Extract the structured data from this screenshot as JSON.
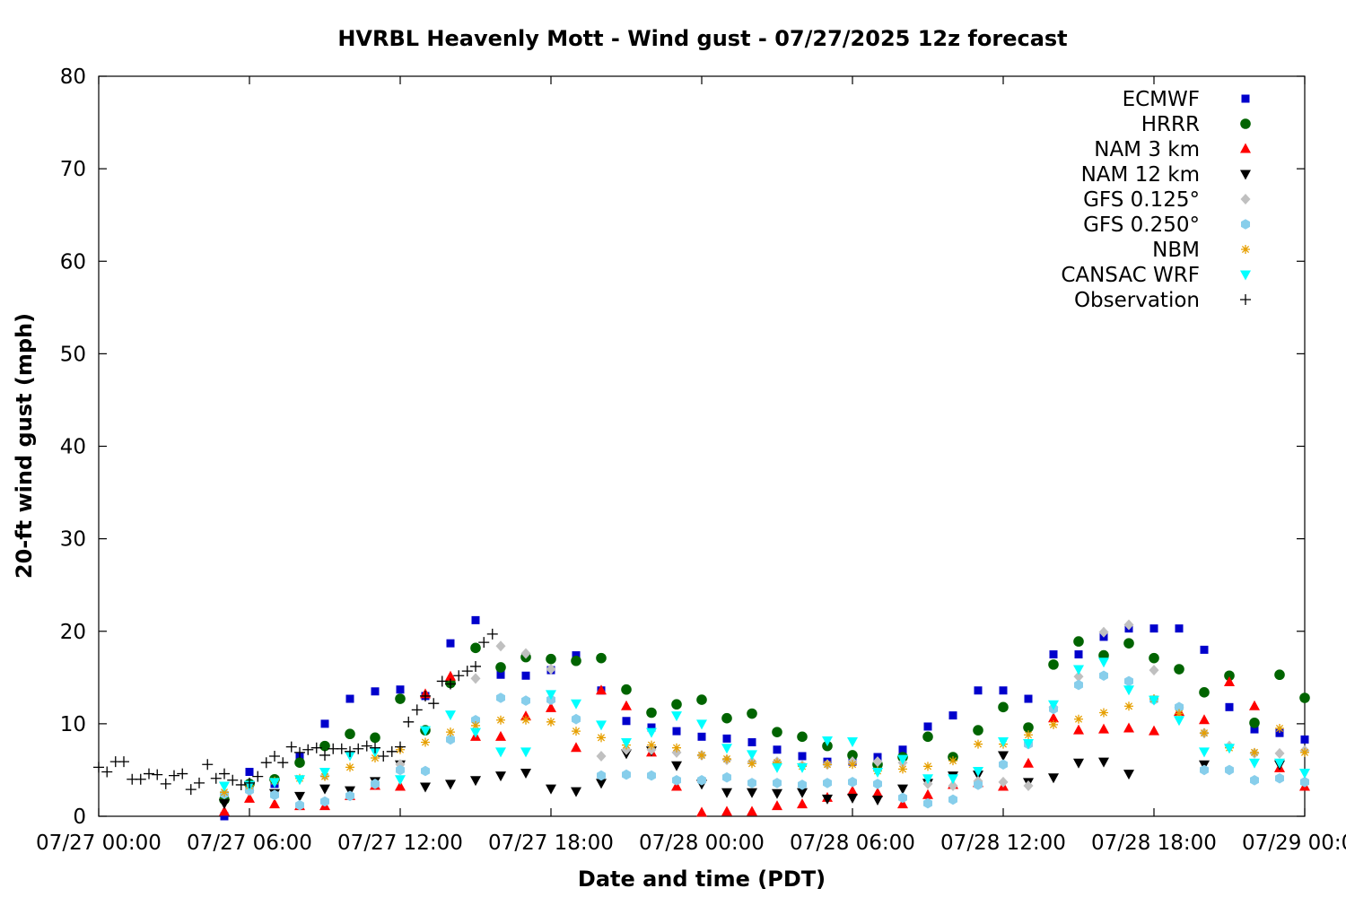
{
  "chart_data": {
    "type": "scatter",
    "title": "HVRBL Heavenly Mott - Wind gust - 07/27/2025 12z forecast",
    "xlabel": "Date and time (PDT)",
    "ylabel": "20-ft wind gust (mph)",
    "xlim": [
      0,
      48
    ],
    "ylim": [
      0,
      80
    ],
    "x_units": "hours since 07/27 00:00 PDT",
    "x_ticks": [
      {
        "x": 0,
        "label": "07/27 00:00"
      },
      {
        "x": 6,
        "label": "07/27 06:00"
      },
      {
        "x": 12,
        "label": "07/27 12:00"
      },
      {
        "x": 18,
        "label": "07/27 18:00"
      },
      {
        "x": 24,
        "label": "07/28 00:00"
      },
      {
        "x": 30,
        "label": "07/28 06:00"
      },
      {
        "x": 36,
        "label": "07/28 12:00"
      },
      {
        "x": 42,
        "label": "07/28 18:00"
      },
      {
        "x": 48,
        "label": "07/29 00:00"
      }
    ],
    "y_ticks": [
      0,
      10,
      20,
      30,
      40,
      50,
      60,
      70,
      80
    ],
    "grid": false,
    "legend_position": "top-right",
    "series": [
      {
        "name": "ECMWF",
        "marker": "square",
        "color": "#0000cc",
        "x": [
          5,
          6,
          7,
          8,
          9,
          10,
          11,
          12,
          13,
          14,
          15,
          16,
          17,
          18,
          19,
          20,
          21,
          22,
          23,
          24,
          25,
          26,
          27,
          28,
          29,
          30,
          31,
          32,
          33,
          34,
          35,
          36,
          37,
          38,
          39,
          40,
          41,
          42,
          43,
          44,
          45,
          46,
          47,
          48
        ],
        "y": [
          0,
          4.8,
          3.5,
          6.5,
          10,
          12.7,
          13.5,
          13.7,
          13,
          18.7,
          21.2,
          15.3,
          15.2,
          15.8,
          17.4,
          13.6,
          10.3,
          9.6,
          9.2,
          8.6,
          8.4,
          8.0,
          7.2,
          6.5,
          5.9,
          5.9,
          6.4,
          7.2,
          9.7,
          10.9,
          13.6,
          13.6,
          12.7,
          17.5,
          17.5,
          19.4,
          20.3,
          20.3,
          20.3,
          18,
          11.8,
          9.4,
          9.0,
          8.3
        ]
      },
      {
        "name": "HRRR",
        "marker": "circle",
        "color": "#006400",
        "x": [
          5,
          6,
          7,
          8,
          9,
          10,
          11,
          12,
          13,
          14,
          15,
          16,
          17,
          18,
          19,
          20,
          21,
          22,
          23,
          24,
          25,
          26,
          27,
          28,
          29,
          30,
          31,
          32,
          33,
          34,
          35,
          36,
          37,
          38,
          39,
          40,
          41,
          42,
          43,
          44,
          45,
          46,
          47,
          48
        ],
        "y": [
          1.8,
          3.5,
          4,
          5.8,
          7.6,
          8.9,
          8.5,
          12.7,
          9.3,
          14.4,
          18.2,
          16.1,
          17.2,
          17.0,
          16.8,
          17.1,
          13.7,
          11.2,
          12.1,
          12.6,
          10.6,
          11.1,
          9.1,
          8.6,
          7.6,
          6.6,
          5.6,
          6.4,
          8.6,
          6.4,
          9.3,
          11.8,
          9.6,
          16.4,
          18.9,
          17.4,
          18.7,
          17.1,
          15.9,
          13.4,
          15.2,
          10.1,
          15.3,
          12.8
        ]
      },
      {
        "name": "NAM 3 km",
        "marker": "triangle-up",
        "color": "#ff0000",
        "x": [
          5,
          6,
          7,
          8,
          9,
          10,
          11,
          12,
          13,
          14,
          15,
          16,
          17,
          18,
          19,
          20,
          21,
          22,
          23,
          24,
          25,
          26,
          27,
          28,
          29,
          30,
          31,
          32,
          33,
          34,
          35,
          36,
          37,
          38,
          39,
          40,
          41,
          42,
          43,
          44,
          45,
          46,
          47,
          48
        ],
        "y": [
          0.5,
          1.9,
          1.3,
          1.1,
          1.1,
          2.2,
          3.3,
          3.2,
          13.2,
          15.1,
          8.6,
          8.6,
          10.8,
          11.7,
          7.4,
          13.6,
          11.9,
          6.9,
          3.2,
          0.4,
          0.5,
          0.5,
          1.1,
          1.3,
          2.0,
          2.7,
          2.5,
          1.3,
          2.3,
          3.4,
          3.6,
          3.2,
          5.7,
          10.6,
          9.3,
          9.4,
          9.5,
          9.2,
          11.3,
          10.4,
          14.5,
          11.9,
          5.2,
          3.2
        ]
      },
      {
        "name": "NAM 12 km",
        "marker": "triangle-down",
        "color": "#000000",
        "x": [
          5,
          6,
          7,
          8,
          9,
          10,
          11,
          12,
          13,
          14,
          15,
          16,
          17,
          18,
          19,
          20,
          21,
          22,
          23,
          24,
          25,
          26,
          27,
          28,
          29,
          30,
          31,
          32,
          33,
          34,
          35,
          36,
          37,
          38,
          39,
          40,
          41,
          42,
          43,
          44,
          45,
          46,
          47,
          48
        ],
        "y": [
          1.4,
          3.3,
          2.5,
          2.2,
          3.0,
          2.8,
          3.8,
          5.6,
          3.2,
          3.5,
          3.9,
          4.4,
          4.7,
          3.0,
          2.7,
          3.6,
          6.8,
          7.1,
          5.5,
          3.5,
          2.6,
          2.6,
          2.5,
          2.6,
          1.9,
          2.0,
          1.8,
          3.0,
          3.6,
          4.4,
          4.5,
          6.6,
          3.7,
          4.2,
          5.8,
          5.9,
          4.6,
          null,
          null,
          5.6,
          null,
          null,
          5.6,
          null
        ]
      },
      {
        "name": "GFS 0.125°",
        "marker": "diamond",
        "color": "#c0c0c0",
        "x": [
          6,
          9,
          12,
          15,
          16,
          17,
          18,
          19,
          20,
          21,
          22,
          23,
          24,
          25,
          26,
          27,
          28,
          29,
          30,
          31,
          32,
          33,
          34,
          35,
          36,
          37,
          38,
          39,
          40,
          41,
          42,
          43,
          44,
          45,
          46,
          47,
          48
        ],
        "y": [
          2.8,
          4.4,
          5.6,
          14.9,
          18.4,
          17.6,
          15.9,
          10.5,
          6.5,
          7.2,
          7.2,
          6.9,
          6.6,
          6.1,
          5.9,
          5.9,
          5.5,
          5.6,
          5.9,
          5.9,
          5.8,
          3.5,
          3.3,
          3.8,
          3.7,
          3.3,
          11.8,
          15.1,
          19.9,
          20.7,
          15.8,
          11.8,
          9.0,
          7.6,
          6.8,
          6.8,
          7.1
        ]
      },
      {
        "name": "GFS 0.250°",
        "marker": "hexagon",
        "color": "#87ceeb",
        "x": [
          5,
          6,
          7,
          8,
          9,
          10,
          11,
          12,
          13,
          14,
          15,
          16,
          17,
          18,
          19,
          20,
          21,
          22,
          23,
          24,
          25,
          26,
          27,
          28,
          29,
          30,
          31,
          32,
          33,
          34,
          35,
          36,
          37,
          38,
          39,
          40,
          41,
          42,
          43,
          44,
          45,
          46,
          47,
          48
        ],
        "y": [
          2.4,
          2.8,
          2.3,
          1.2,
          1.6,
          2.2,
          3.5,
          5.0,
          4.9,
          8.3,
          10.4,
          12.8,
          12.5,
          12.6,
          10.5,
          4.4,
          4.5,
          4.4,
          3.9,
          3.9,
          4.2,
          3.6,
          3.6,
          3.4,
          3.6,
          3.7,
          3.5,
          2.0,
          1.4,
          1.8,
          3.4,
          5.6,
          7.8,
          11.6,
          14.2,
          15.2,
          14.6,
          12.6,
          11.8,
          5.0,
          5.0,
          3.9,
          4.1,
          3.7
        ]
      },
      {
        "name": "NBM",
        "marker": "asterisk",
        "color": "#e69f00",
        "x": [
          5,
          6,
          7,
          8,
          9,
          10,
          11,
          12,
          13,
          14,
          15,
          16,
          17,
          18,
          19,
          20,
          21,
          22,
          23,
          24,
          25,
          26,
          27,
          28,
          29,
          30,
          31,
          32,
          33,
          34,
          35,
          36,
          37,
          38,
          39,
          40,
          41,
          42,
          43,
          44,
          45,
          46,
          47,
          48
        ],
        "y": [
          2.6,
          3.3,
          3.8,
          4.1,
          4.3,
          5.3,
          6.3,
          7.2,
          8.0,
          9.1,
          9.8,
          10.4,
          10.4,
          10.2,
          9.2,
          8.5,
          7.7,
          7.7,
          7.4,
          6.6,
          6.2,
          5.7,
          5.8,
          5.4,
          5.6,
          5.6,
          4.9,
          5.1,
          5.4,
          6.0,
          7.8,
          7.8,
          8.8,
          9.9,
          10.5,
          11.2,
          11.9,
          12.7,
          11.1,
          9.0,
          7.4,
          6.9,
          9.5,
          6.9
        ]
      },
      {
        "name": "CANSAC WRF",
        "marker": "triangle-down",
        "color": "#00ffff",
        "x": [
          5,
          6,
          7,
          8,
          9,
          10,
          11,
          12,
          13,
          14,
          15,
          16,
          17,
          18,
          19,
          20,
          21,
          22,
          23,
          24,
          25,
          26,
          27,
          28,
          29,
          30,
          31,
          32,
          33,
          34,
          35,
          36,
          37,
          38,
          39,
          40,
          41,
          42,
          43,
          44,
          45,
          46,
          47,
          48
        ],
        "y": [
          3.3,
          3.4,
          3.7,
          4.0,
          4.8,
          6.6,
          7.0,
          4.0,
          9.3,
          11.0,
          9.1,
          7.0,
          7.0,
          13.2,
          12.2,
          9.9,
          8.0,
          9.1,
          10.9,
          10.0,
          7.4,
          6.7,
          5.3,
          5.3,
          8.2,
          8.1,
          4.8,
          6.2,
          4.1,
          4.1,
          4.9,
          8.1,
          7.9,
          12.1,
          15.9,
          16.7,
          13.7,
          12.6,
          10.4,
          7.0,
          7.4,
          5.8,
          5.8,
          4.7
        ]
      },
      {
        "name": "Observation",
        "marker": "plus",
        "color": "#000000",
        "x": [
          0,
          0.33,
          0.67,
          1,
          1.33,
          1.67,
          2,
          2.33,
          2.67,
          3,
          3.33,
          3.67,
          4,
          4.33,
          4.67,
          5,
          5.33,
          5.67,
          6,
          6.33,
          6.67,
          7,
          7.33,
          7.67,
          8,
          8.33,
          8.67,
          9,
          9.33,
          9.67,
          10,
          10.33,
          10.67,
          11,
          11.33,
          11.67,
          12,
          12.33,
          12.67,
          13,
          13.33,
          13.67,
          14,
          14.33,
          14.67,
          15,
          15.33,
          15.67
        ],
        "y": [
          5.3,
          4.8,
          5.9,
          5.9,
          4.0,
          4.0,
          4.6,
          4.5,
          3.5,
          4.4,
          4.6,
          2.9,
          3.6,
          5.6,
          4.1,
          4.6,
          3.9,
          3.4,
          3.6,
          4.3,
          5.8,
          6.5,
          5.8,
          7.5,
          6.9,
          7.2,
          7.4,
          6.6,
          7.3,
          7.3,
          7.0,
          7.3,
          7.6,
          7.4,
          6.5,
          7.0,
          7.5,
          10.2,
          11.5,
          13.0,
          12.2,
          14.6,
          14.3,
          15.2,
          15.7,
          16.2,
          18.8,
          19.7
        ]
      }
    ]
  }
}
